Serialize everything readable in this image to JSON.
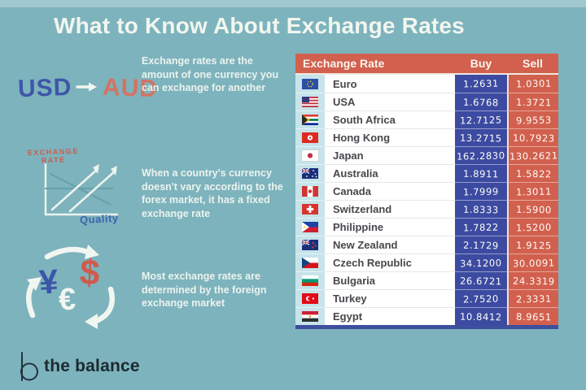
{
  "title": "What to Know About Exchange Rates",
  "colors": {
    "background": "#7db3bd",
    "top_band": "#a2c8cf",
    "accent_coral": "#d2604e",
    "accent_indigo": "#3c4ba1",
    "flag_column_bg": "#c6e4ea",
    "text_light": "#f1f5ee",
    "text_dark": "#47474c",
    "logo_text": "#1c2930"
  },
  "sections": [
    {
      "doodle": {
        "from": "USD",
        "to": "AUD",
        "arrow": "right-arrow-icon"
      },
      "text": "Exchange rates are the amount of one currency you can exchange for another"
    },
    {
      "doodle": {
        "label_line1": "EXCHANGE",
        "label_line2": "RATE",
        "axis_label": "Quality"
      },
      "text": "When a country's currency doesn't vary according to the forex market, it has a fixed exchange rate"
    },
    {
      "doodle": {
        "symbols": {
          "yen": "¥",
          "dollar": "$",
          "euro": "€"
        }
      },
      "text": "Most exchange rates are determined by the foreign exchange market"
    }
  ],
  "table": {
    "headers": {
      "name": "Exchange Rate",
      "buy": "Buy",
      "sell": "Sell"
    },
    "rows": [
      {
        "country": "Euro",
        "buy": "1.2631",
        "sell": "1.0301",
        "flag": {
          "name": "euro",
          "bg": "#2b4fa3",
          "overlays": [
            {
              "t": "ring",
              "c": "#f8d22c",
              "r": 3.4
            }
          ]
        }
      },
      {
        "country": "USA",
        "buy": "1.6768",
        "sell": "1.3721",
        "flag": {
          "name": "usa",
          "stripes": [
            "#bf3341",
            "#ffffff",
            "#bf3341",
            "#ffffff",
            "#bf3341",
            "#ffffff",
            "#bf3341"
          ],
          "overlays": [
            {
              "t": "canton",
              "c": "#35387a"
            }
          ]
        }
      },
      {
        "country": "South Africa",
        "buy": "12.7125",
        "sell": "9.9553",
        "flag": {
          "name": "south-africa",
          "stripes": [
            "#de3831",
            "#ffffff",
            "#007a4d",
            "#ffffff",
            "#002395"
          ],
          "overlays": [
            {
              "t": "tri",
              "c": "#ffb612",
              "s": 0.5
            },
            {
              "t": "tri",
              "c": "#2a2a2a",
              "s": 0.36
            }
          ]
        }
      },
      {
        "country": "Hong Kong",
        "buy": "13.2715",
        "sell": "10.7923",
        "flag": {
          "name": "hong-kong",
          "bg": "#dd2b23",
          "overlays": [
            {
              "t": "dot",
              "c": "#ffffff",
              "r": 3.1
            },
            {
              "t": "dot",
              "c": "#dd2b23",
              "r": 1.1
            }
          ]
        }
      },
      {
        "country": "Japan",
        "buy": "162.2830",
        "sell": "130.2621",
        "flag": {
          "name": "japan",
          "bg": "#ffffff",
          "border": "#cfd4d6",
          "overlays": [
            {
              "t": "dot",
              "c": "#c13145",
              "r": 3.1
            }
          ]
        }
      },
      {
        "country": "Australia",
        "buy": "1.8911",
        "sell": "1.5822",
        "flag": {
          "name": "australia",
          "bg": "#1a2f7a",
          "overlays": [
            {
              "t": "jack"
            },
            {
              "t": "dots",
              "c": "#ffffff",
              "r": 0.9,
              "pts": [
                [
                  14,
                  3
                ],
                [
                  16.5,
                  7
                ],
                [
                  13,
                  10
                ],
                [
                  17.5,
                  10.5
                ],
                [
                  6,
                  10
                ]
              ]
            }
          ]
        }
      },
      {
        "country": "Canada",
        "buy": "1.7999",
        "sell": "1.3011",
        "flag": {
          "name": "canada",
          "vstripes": [
            "#d03433",
            "#ffffff",
            "#d03433"
          ],
          "overlays": [
            {
              "t": "dot",
              "c": "#d03433",
              "r": 2.2
            }
          ]
        }
      },
      {
        "country": "Switzerland",
        "buy": "1.8333",
        "sell": "1.5900",
        "flag": {
          "name": "switzerland",
          "bg": "#d8342f",
          "overlays": [
            {
              "t": "cross",
              "c": "#ffffff"
            }
          ]
        }
      },
      {
        "country": "Philippine",
        "buy": "1.7822",
        "sell": "1.5200",
        "flag": {
          "name": "philippines",
          "stripes": [
            "#1c43a5",
            "#cf2033"
          ],
          "overlays": [
            {
              "t": "tri",
              "c": "#ffffff",
              "s": 0.45
            },
            {
              "t": "dots",
              "c": "#f8c300",
              "r": 1,
              "pts": [
                [
                  3,
                  6.5
                ]
              ]
            }
          ]
        }
      },
      {
        "country": "New Zealand",
        "buy": "2.1729",
        "sell": "1.9125",
        "flag": {
          "name": "new-zealand",
          "bg": "#1a2f7a",
          "overlays": [
            {
              "t": "jack"
            },
            {
              "t": "dots",
              "c": "#d23b33",
              "r": 1.1,
              "pts": [
                [
                  14,
                  4
                ],
                [
                  16.5,
                  7.5
                ],
                [
                  13,
                  9.5
                ]
              ]
            }
          ]
        }
      },
      {
        "country": "Czech Republic",
        "buy": "34.1200",
        "sell": "30.0091",
        "flag": {
          "name": "czech-republic",
          "stripes": [
            "#ffffff",
            "#d7141a"
          ],
          "overlays": [
            {
              "t": "tri",
              "c": "#11457e",
              "s": 0.5
            }
          ]
        }
      },
      {
        "country": "Bulgaria",
        "buy": "26.6721",
        "sell": "24.3319",
        "flag": {
          "name": "bulgaria",
          "stripes": [
            "#ffffff",
            "#009b74",
            "#d62612"
          ]
        }
      },
      {
        "country": "Turkey",
        "buy": "2.7520",
        "sell": "2.3331",
        "flag": {
          "name": "turkey",
          "bg": "#e30a17",
          "overlays": [
            {
              "t": "dot",
              "c": "#ffffff",
              "r": 3,
              "x": 8
            },
            {
              "t": "dot",
              "c": "#e30a17",
              "r": 2.3,
              "x": 9.4
            },
            {
              "t": "dots",
              "c": "#ffffff",
              "r": 1.1,
              "pts": [
                [
                  13.8,
                  6.5
                ]
              ]
            }
          ]
        }
      },
      {
        "country": "Egypt",
        "buy": "10.8412",
        "sell": "8.9651",
        "flag": {
          "name": "egypt",
          "stripes": [
            "#cf2033",
            "#ffffff",
            "#2f2f2f"
          ],
          "overlays": [
            {
              "t": "dots",
              "c": "#c9a227",
              "r": 1.3,
              "pts": [
                [
                  10,
                  6.5
                ]
              ]
            }
          ]
        }
      }
    ]
  },
  "logo": {
    "text": "the balance"
  },
  "chart_data": {
    "type": "table",
    "title": "What to Know About Exchange Rates",
    "columns": [
      "Exchange Rate",
      "Buy",
      "Sell"
    ],
    "rows": [
      [
        "Euro",
        1.2631,
        1.0301
      ],
      [
        "USA",
        1.6768,
        1.3721
      ],
      [
        "South Africa",
        12.7125,
        9.9553
      ],
      [
        "Hong Kong",
        13.2715,
        10.7923
      ],
      [
        "Japan",
        162.283,
        130.2621
      ],
      [
        "Australia",
        1.8911,
        1.5822
      ],
      [
        "Canada",
        1.7999,
        1.3011
      ],
      [
        "Switzerland",
        1.8333,
        1.59
      ],
      [
        "Philippine",
        1.7822,
        1.52
      ],
      [
        "New Zealand",
        2.1729,
        1.9125
      ],
      [
        "Czech Republic",
        34.12,
        30.0091
      ],
      [
        "Bulgaria",
        26.6721,
        24.3319
      ],
      [
        "Turkey",
        2.752,
        2.3331
      ],
      [
        "Egypt",
        10.8412,
        8.9651
      ]
    ],
    "notes": [
      "Exchange rates are the amount of one currency you can exchange for another",
      "When a country's currency doesn't vary according to the forex market, it has a fixed exchange rate",
      "Most exchange rates are determined by the foreign exchange market"
    ]
  }
}
